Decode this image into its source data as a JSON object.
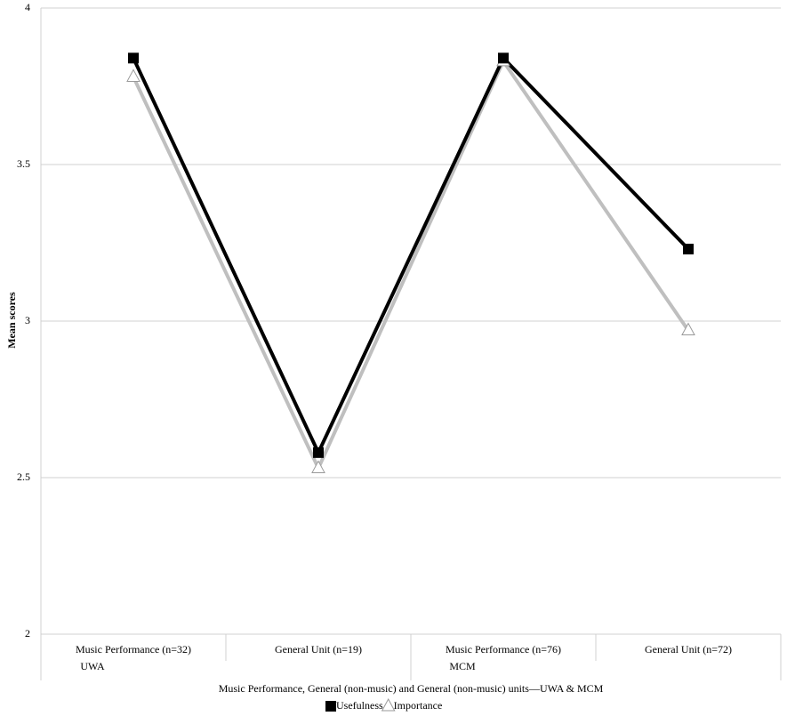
{
  "chart_data": {
    "type": "line",
    "y_label": "Mean scores",
    "x_label": "Music Performance, General (non-music) and General (non-music) units—UWA & MCM",
    "categories": [
      "Music Performance (n=32)",
      "General Unit (n=19)",
      "Music Performance (n=76)",
      "General Unit (n=72)"
    ],
    "groups": [
      "UWA",
      "MCM"
    ],
    "series": [
      {
        "name": "Usefulness",
        "color": "#000000",
        "marker": "square",
        "values": [
          3.84,
          2.58,
          3.84,
          3.23
        ]
      },
      {
        "name": "Importance",
        "color": "#bfbfbf",
        "marker": "triangle",
        "values": [
          3.78,
          2.53,
          3.83,
          2.97
        ]
      }
    ],
    "ylim": [
      2,
      4
    ],
    "yticks": [
      2,
      2.5,
      3,
      3.5,
      4
    ],
    "grid": true
  }
}
